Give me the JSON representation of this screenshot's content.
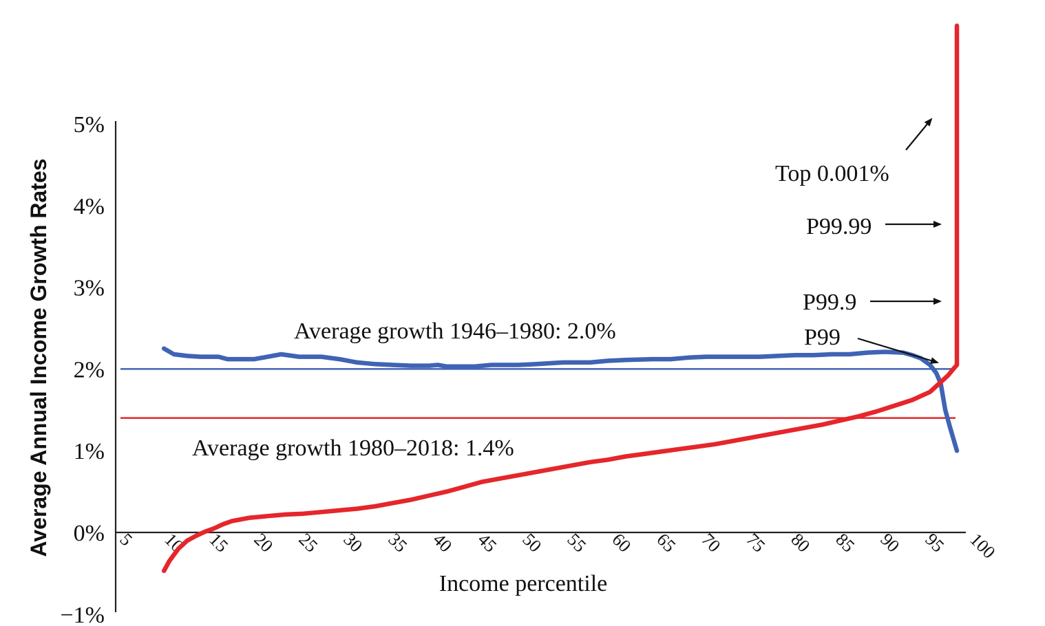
{
  "chart_data": {
    "type": "line",
    "xlabel": "Income percentile",
    "ylabel": "Average Annual Income Growth Rates",
    "xlim": [
      5,
      100
    ],
    "ylim": [
      -1,
      5
    ],
    "x_tick_labels": [
      "5",
      "10",
      "15",
      "20",
      "25",
      "30",
      "35",
      "40",
      "45",
      "50",
      "55",
      "60",
      "65",
      "70",
      "75",
      "80",
      "85",
      "90",
      "95",
      "100"
    ],
    "y_tick_labels": [
      {
        "value": 5,
        "label": "5%"
      },
      {
        "value": 4,
        "label": "4%"
      },
      {
        "value": 3,
        "label": "3%"
      },
      {
        "value": 2,
        "label": "2%"
      },
      {
        "value": 1,
        "label": "1%"
      },
      {
        "value": 0,
        "label": "0%"
      },
      {
        "value": -1,
        "label": "−1%"
      }
    ],
    "grid": false,
    "colors": {
      "blue": "#3f63b5",
      "red": "#e5262b",
      "axis": "#222222",
      "text": "#111111"
    },
    "series": [
      {
        "color": "blue",
        "points": [
          [
            10.4,
            2.25
          ],
          [
            11.5,
            2.18
          ],
          [
            13,
            2.16
          ],
          [
            14.5,
            2.15
          ],
          [
            16.5,
            2.15
          ],
          [
            17.5,
            2.12
          ],
          [
            20.5,
            2.12
          ],
          [
            22,
            2.15
          ],
          [
            23.5,
            2.18
          ],
          [
            25.5,
            2.15
          ],
          [
            28,
            2.15
          ],
          [
            30,
            2.12
          ],
          [
            32,
            2.08
          ],
          [
            34,
            2.06
          ],
          [
            36,
            2.05
          ],
          [
            38,
            2.04
          ],
          [
            40,
            2.04
          ],
          [
            41,
            2.05
          ],
          [
            42,
            2.03
          ],
          [
            45,
            2.03
          ],
          [
            47,
            2.05
          ],
          [
            50,
            2.05
          ],
          [
            52,
            2.06
          ],
          [
            55,
            2.08
          ],
          [
            58,
            2.08
          ],
          [
            60,
            2.1
          ],
          [
            62,
            2.11
          ],
          [
            65,
            2.12
          ],
          [
            67,
            2.12
          ],
          [
            69,
            2.14
          ],
          [
            71,
            2.15
          ],
          [
            73,
            2.15
          ],
          [
            75,
            2.15
          ],
          [
            77,
            2.15
          ],
          [
            79,
            2.16
          ],
          [
            81,
            2.17
          ],
          [
            83,
            2.17
          ],
          [
            85,
            2.18
          ],
          [
            87,
            2.18
          ],
          [
            89,
            2.2
          ],
          [
            91,
            2.21
          ],
          [
            93,
            2.2
          ],
          [
            94,
            2.17
          ],
          [
            95,
            2.13
          ],
          [
            96,
            2.05
          ],
          [
            96.7,
            1.95
          ],
          [
            97.2,
            1.82
          ],
          [
            97.7,
            1.5
          ],
          [
            98.2,
            1.3
          ],
          [
            98.6,
            1.15
          ],
          [
            99.0,
            1.0
          ]
        ]
      },
      {
        "color": "red",
        "points": [
          [
            10.4,
            -0.47
          ],
          [
            11,
            -0.35
          ],
          [
            12,
            -0.2
          ],
          [
            13,
            -0.1
          ],
          [
            14,
            -0.04
          ],
          [
            15,
            0.01
          ],
          [
            16,
            0.05
          ],
          [
            17,
            0.1
          ],
          [
            18,
            0.14
          ],
          [
            20,
            0.18
          ],
          [
            22,
            0.2
          ],
          [
            24,
            0.22
          ],
          [
            26,
            0.23
          ],
          [
            28,
            0.25
          ],
          [
            30,
            0.27
          ],
          [
            32,
            0.29
          ],
          [
            34,
            0.32
          ],
          [
            36,
            0.36
          ],
          [
            38,
            0.4
          ],
          [
            40,
            0.45
          ],
          [
            42,
            0.5
          ],
          [
            44,
            0.56
          ],
          [
            46,
            0.62
          ],
          [
            48,
            0.66
          ],
          [
            50,
            0.7
          ],
          [
            52,
            0.74
          ],
          [
            54,
            0.78
          ],
          [
            56,
            0.82
          ],
          [
            58,
            0.86
          ],
          [
            60,
            0.89
          ],
          [
            62,
            0.93
          ],
          [
            64,
            0.96
          ],
          [
            66,
            0.99
          ],
          [
            68,
            1.02
          ],
          [
            70,
            1.05
          ],
          [
            72,
            1.08
          ],
          [
            74,
            1.12
          ],
          [
            76,
            1.16
          ],
          [
            78,
            1.2
          ],
          [
            80,
            1.24
          ],
          [
            82,
            1.28
          ],
          [
            84,
            1.32
          ],
          [
            86,
            1.37
          ],
          [
            88,
            1.42
          ],
          [
            90,
            1.48
          ],
          [
            92,
            1.55
          ],
          [
            94,
            1.62
          ],
          [
            96,
            1.72
          ],
          [
            97,
            1.82
          ],
          [
            98,
            1.92
          ],
          [
            98.6,
            2.0
          ],
          [
            99.0,
            2.05
          ],
          [
            99.0,
            2.99
          ],
          [
            99.0,
            3.99
          ],
          [
            99.0,
            6.2
          ]
        ]
      }
    ],
    "reference_lines": [
      {
        "y": 2.0,
        "color": "blue",
        "label": "Average growth 1946–1980: 2.0%"
      },
      {
        "y": 1.4,
        "color": "red",
        "label": "Average growth 1980–2018: 1.4%"
      }
    ],
    "annotations": [
      "Top 0.001%",
      "P99.99",
      "P99.9",
      "P99"
    ]
  }
}
